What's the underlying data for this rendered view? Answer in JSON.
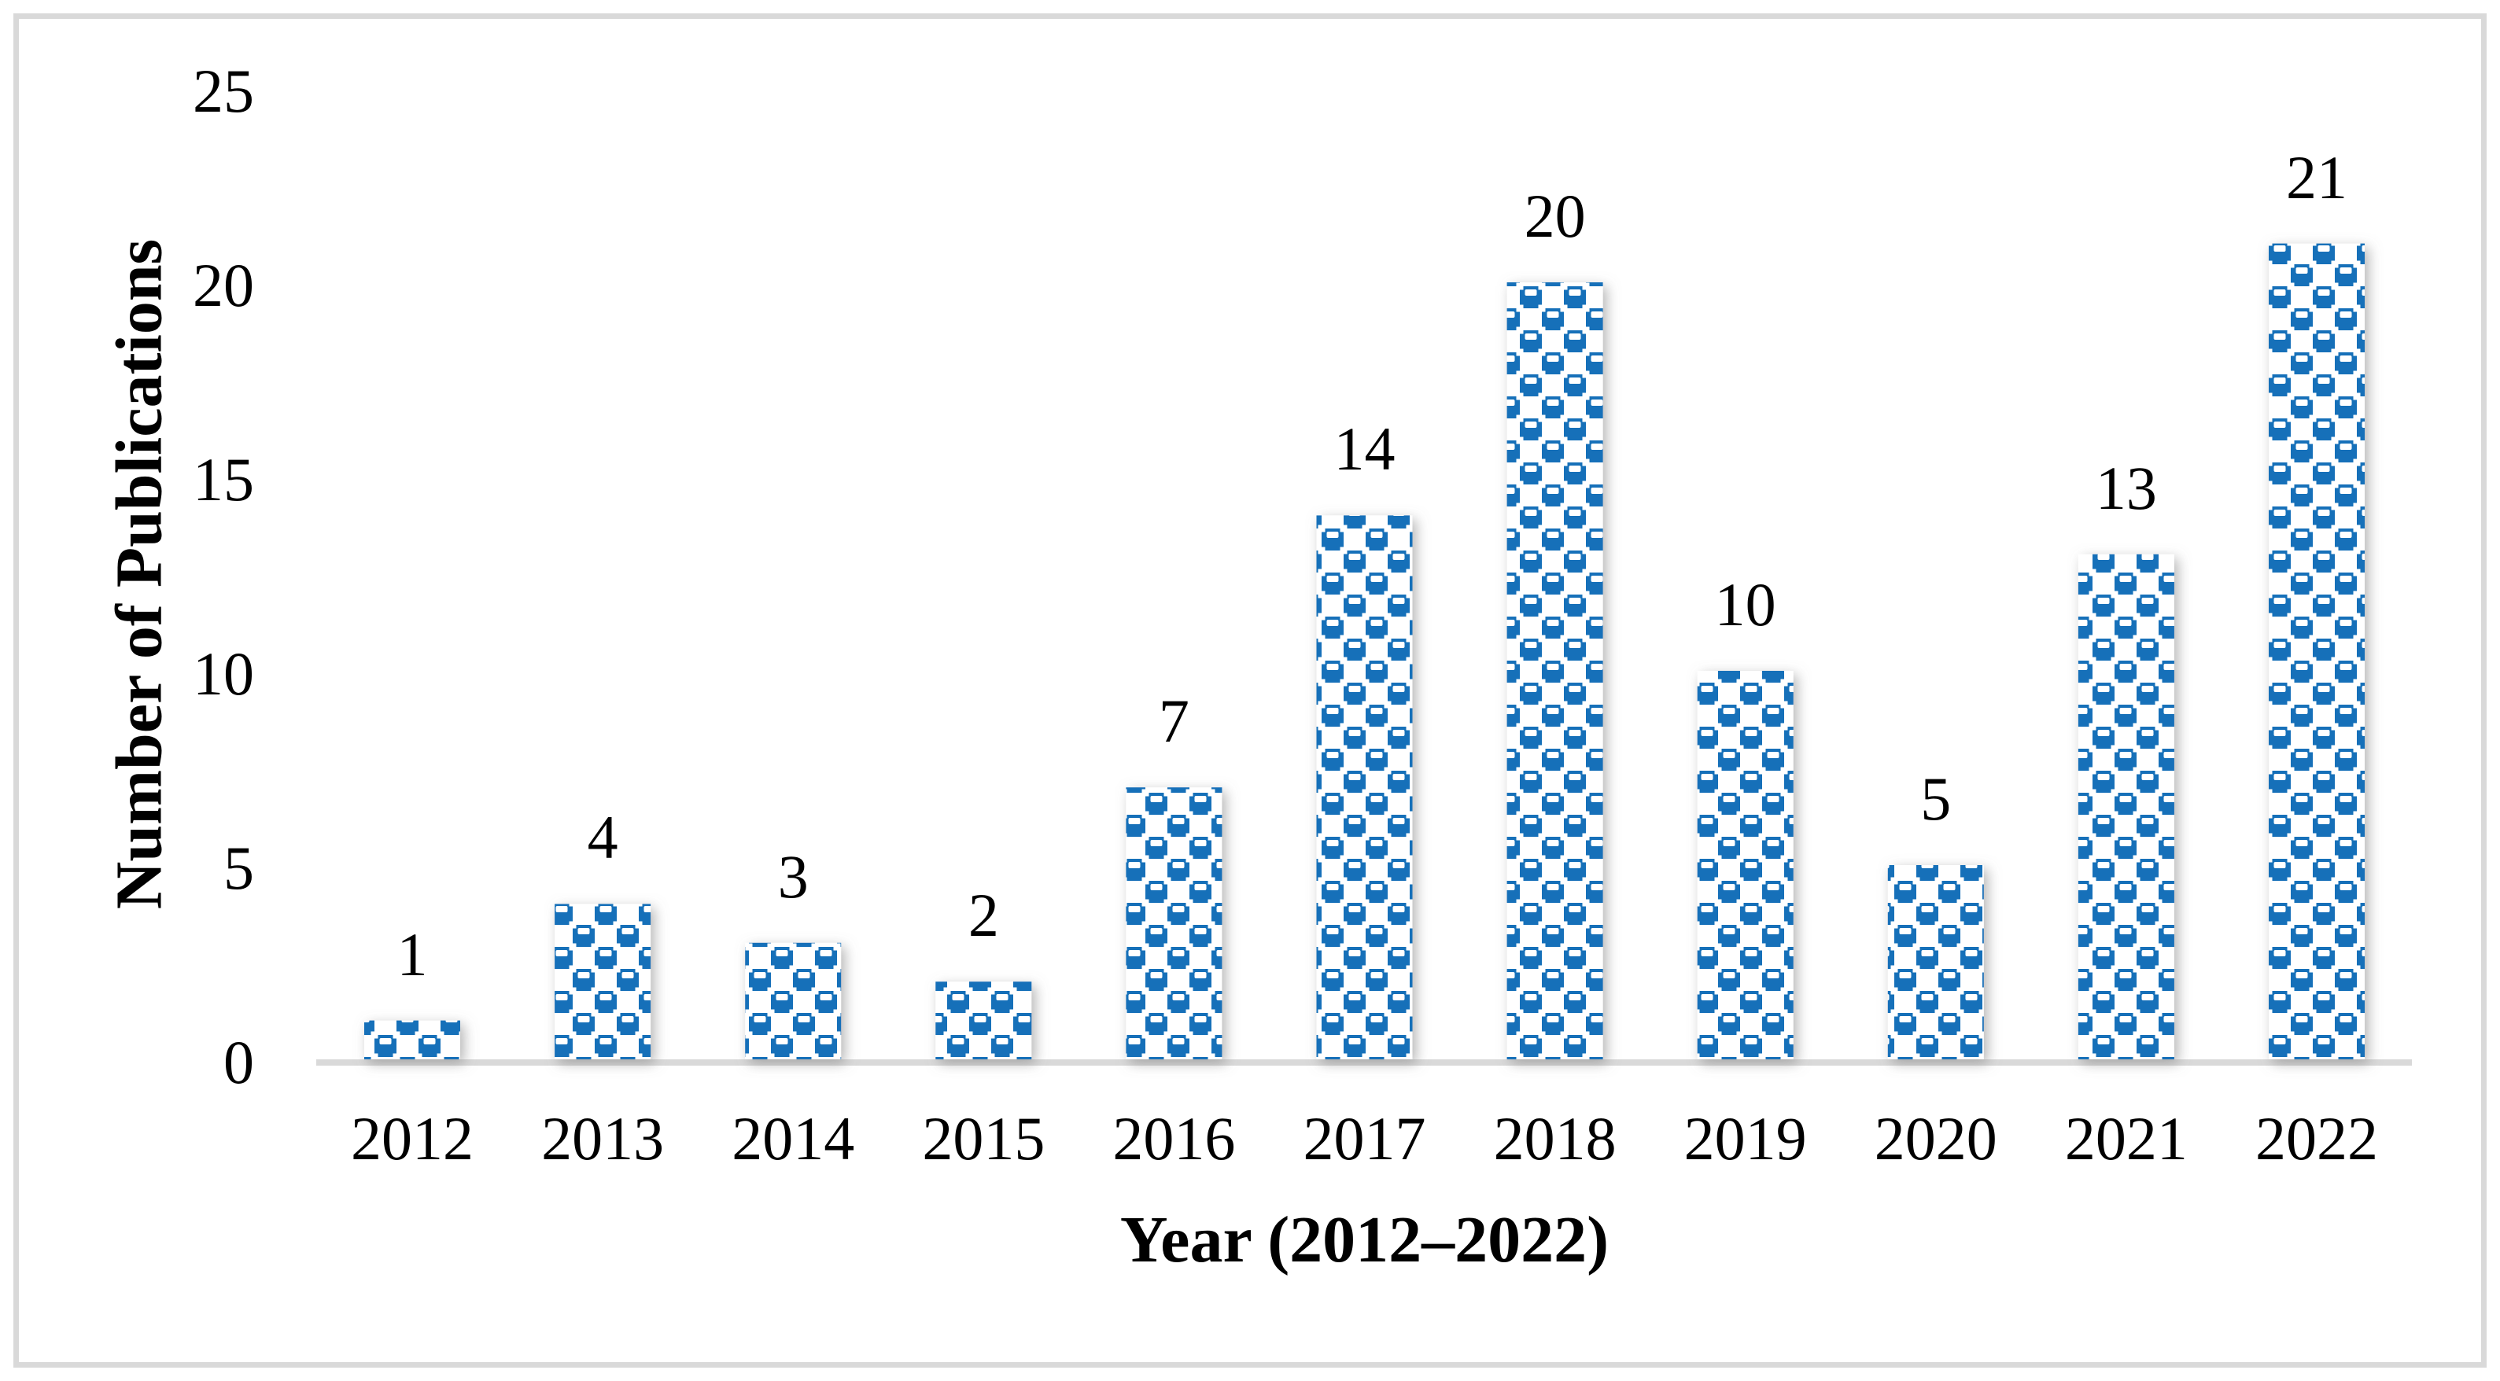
{
  "figure": {
    "background": "#ffffff",
    "border_color": "#d9d9d9",
    "axis_line_color": "#d9d9d9",
    "text_color": "#000000"
  },
  "chart_data": {
    "type": "bar",
    "title": "",
    "categories": [
      "2012",
      "2013",
      "2014",
      "2015",
      "2016",
      "2017",
      "2018",
      "2019",
      "2020",
      "2021",
      "2022"
    ],
    "values": [
      1,
      4,
      3,
      2,
      7,
      14,
      20,
      10,
      5,
      13,
      21
    ],
    "xlabel": "Year (2012–2022)",
    "ylabel": "Number of Publications",
    "ylim": [
      0,
      25
    ],
    "yticks": [
      0,
      5,
      10,
      15,
      20,
      25
    ],
    "grid": false,
    "legend": "none",
    "data_labels_visible": true,
    "bar_style": {
      "fill_color": "#1270b9",
      "pattern": "blue-white checkerboard squares with small white dashes and white corner squares",
      "shadow": true
    }
  }
}
